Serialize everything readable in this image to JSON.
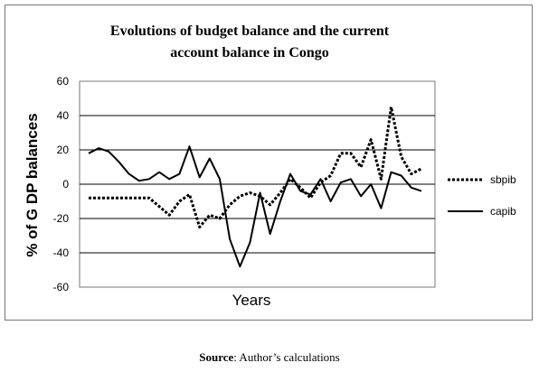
{
  "chart_data": {
    "type": "line",
    "title_line1": "Evolutions of budget balance and the current",
    "title_line2": "account balance in Congo",
    "xlabel": "Years",
    "ylabel": "% of G DP balances",
    "ylim": [
      -60,
      60
    ],
    "yticks": [
      "60",
      "40",
      "20",
      "0",
      "-20",
      "-40",
      "-60"
    ],
    "ytick_values": [
      60,
      40,
      20,
      0,
      -20,
      -40,
      -60
    ],
    "grid": true,
    "legend_position": "right",
    "series": [
      {
        "name": "sbpib",
        "style": "dotted",
        "values": [
          -8,
          -8,
          -8,
          -8,
          -8,
          -8,
          -8,
          -13,
          -18,
          -10,
          -6,
          -25,
          -18,
          -20,
          -12,
          -7,
          -5,
          -7,
          -12,
          -5,
          3,
          -2,
          -8,
          1,
          5,
          18,
          18,
          10,
          26,
          3,
          45,
          16,
          6,
          9
        ]
      },
      {
        "name": "capib",
        "style": "solid",
        "values": [
          18,
          21,
          19,
          13,
          6,
          2,
          3,
          7,
          3,
          6,
          22,
          4,
          15,
          3,
          -32,
          -48,
          -34,
          -5,
          -29,
          -10,
          6,
          -4,
          -6,
          3,
          -10,
          1,
          3,
          -7,
          0,
          -14,
          7,
          5,
          -2,
          -4
        ]
      }
    ],
    "colors": {
      "line": "#000000",
      "grid": "#000000",
      "frame": "#777777"
    }
  },
  "source": {
    "label": "Source",
    "text": ": Author’s calculations"
  }
}
